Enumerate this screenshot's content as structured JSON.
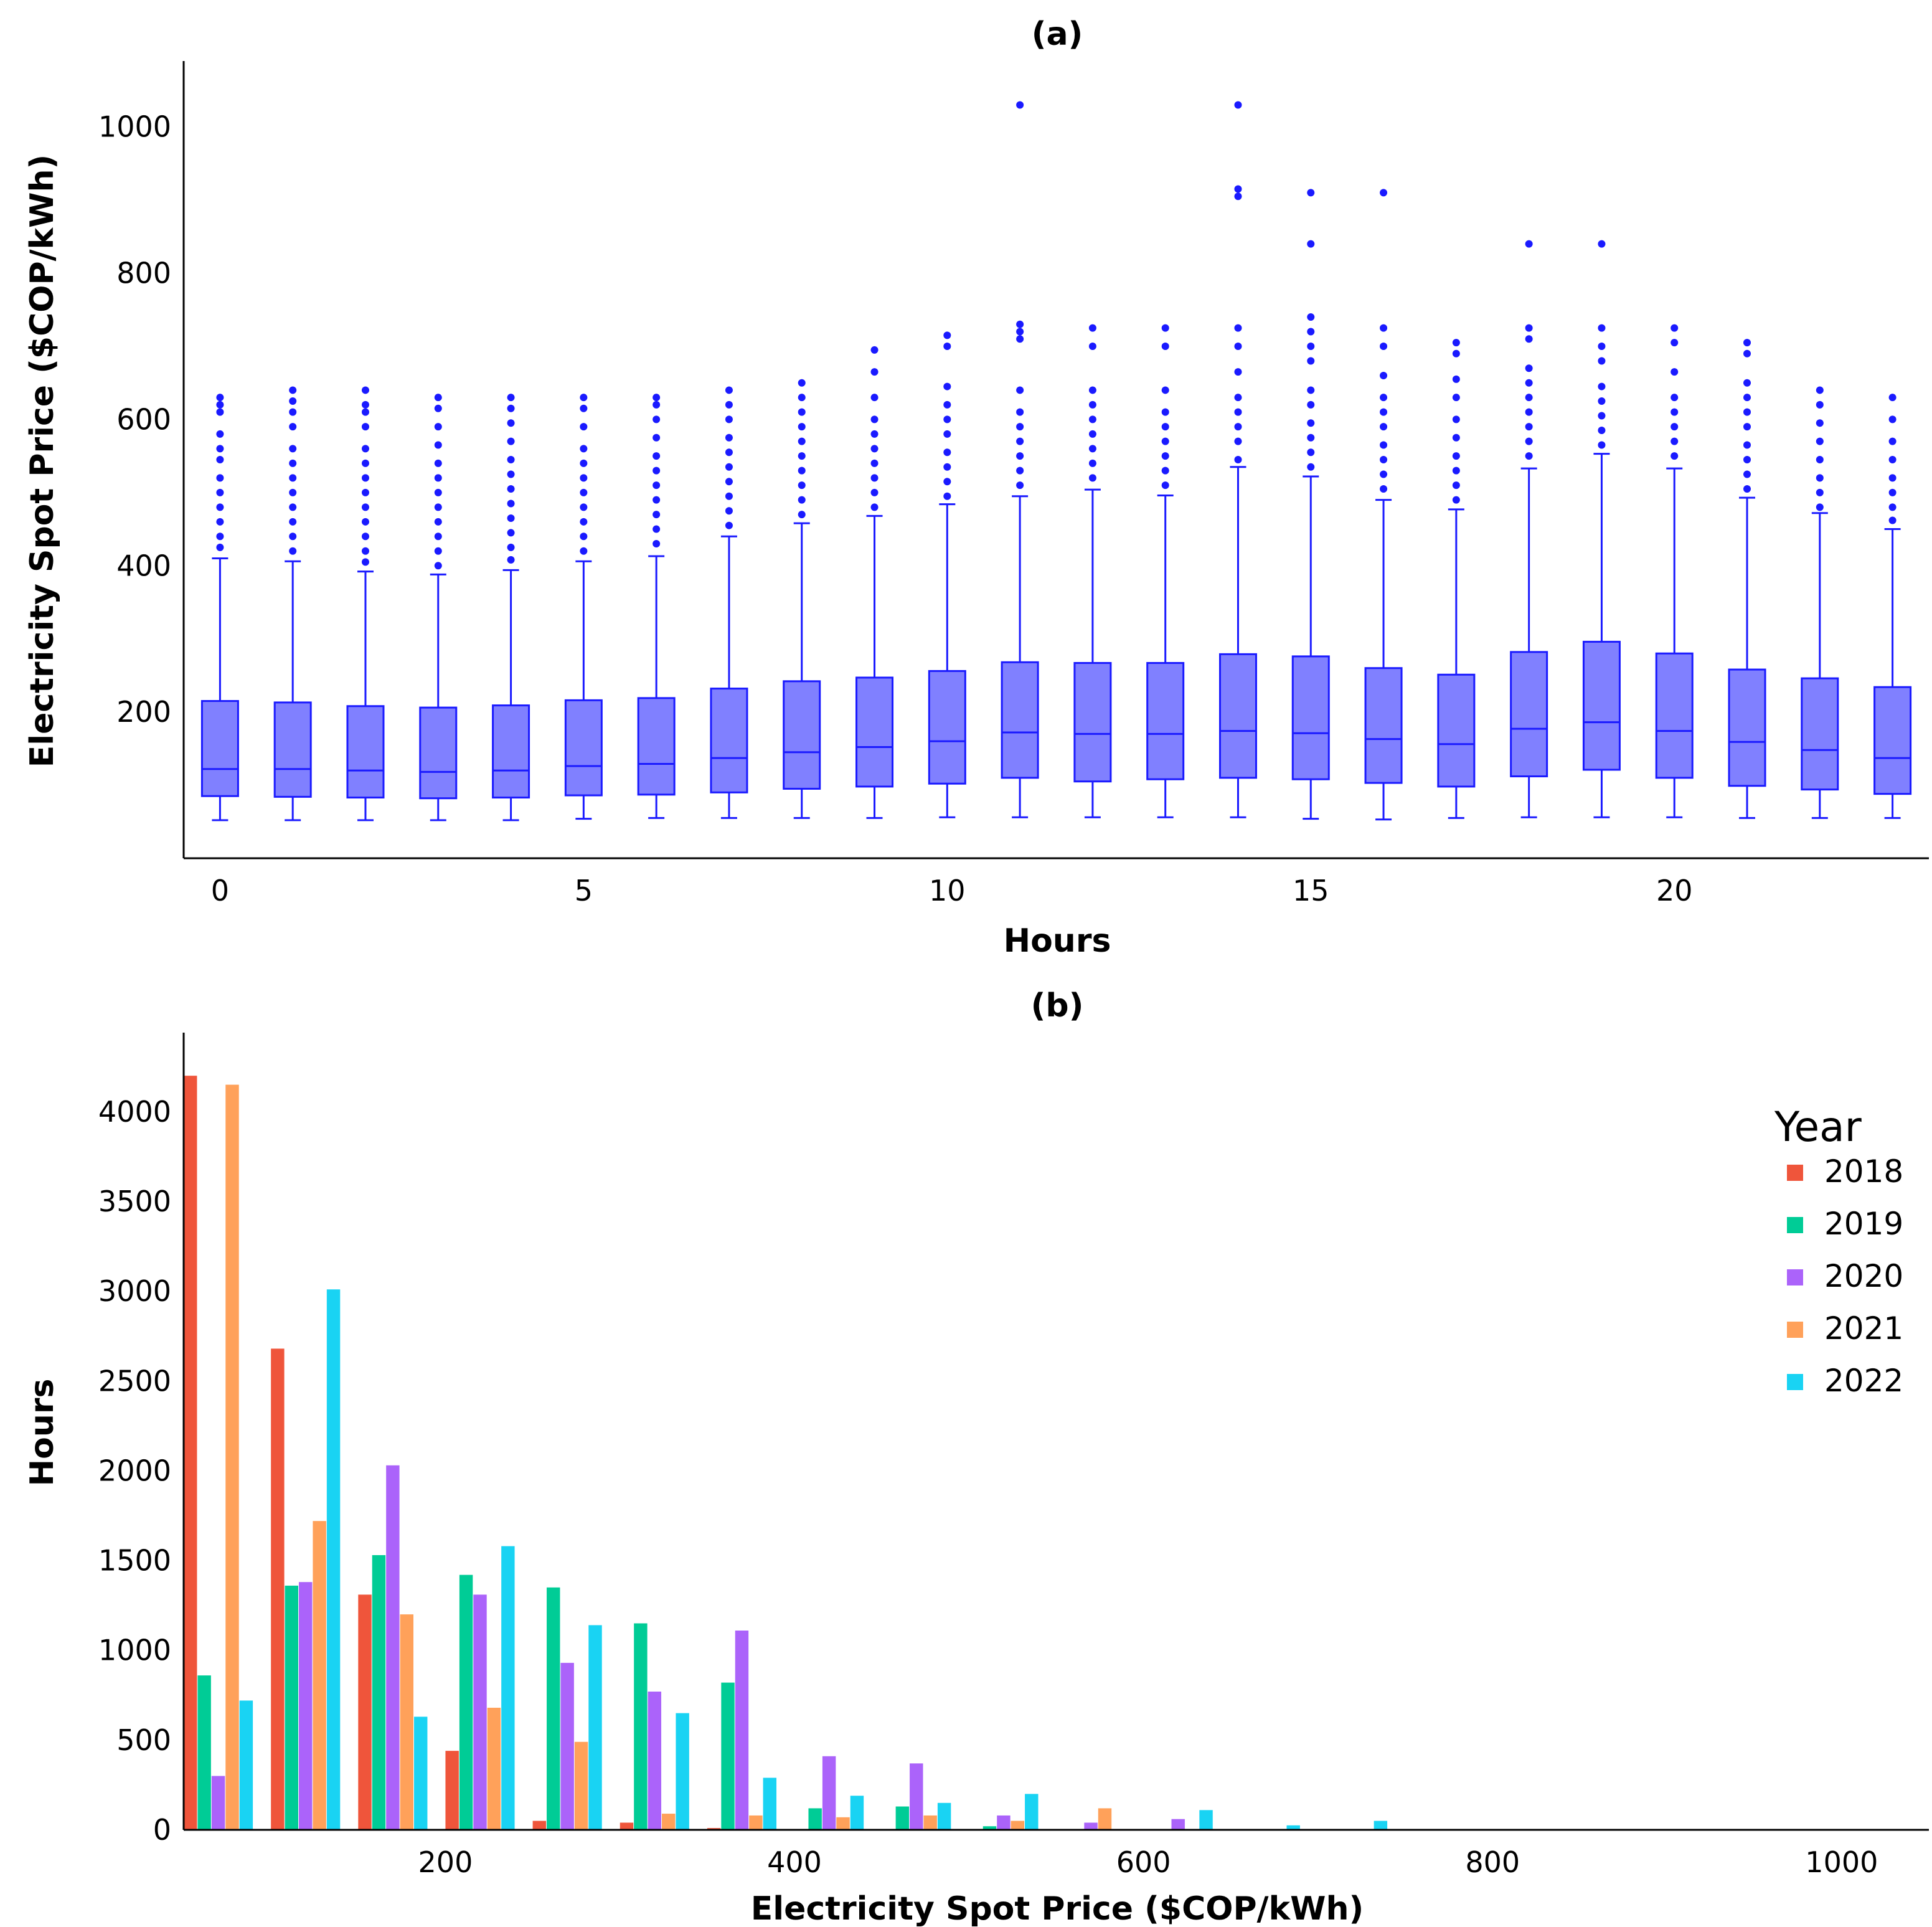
{
  "chart_data": [
    {
      "type": "box",
      "panel_label": "(a)",
      "xlabel": "Hours",
      "ylabel": "Electricity Spot Price ($COP/kWh)",
      "xticks": [
        0,
        5,
        10,
        15,
        20
      ],
      "yticks": [
        200,
        400,
        600,
        800,
        1000
      ],
      "xlim": [
        -0.5,
        23.5
      ],
      "ylim": [
        0,
        1090
      ],
      "color": "#1a1aff",
      "fill": "#8080ff",
      "boxes": [
        {
          "hour": 0,
          "whislo": 52,
          "q1": 85,
          "med": 122,
          "q3": 215,
          "whishi": 410,
          "outliers": [
            425,
            440,
            460,
            480,
            500,
            520,
            545,
            560,
            580,
            610,
            620,
            630
          ]
        },
        {
          "hour": 1,
          "whislo": 52,
          "q1": 84,
          "med": 122,
          "q3": 213,
          "whishi": 406,
          "outliers": [
            420,
            440,
            460,
            480,
            500,
            520,
            540,
            560,
            590,
            610,
            625,
            640
          ]
        },
        {
          "hour": 2,
          "whislo": 52,
          "q1": 83,
          "med": 120,
          "q3": 208,
          "whishi": 392,
          "outliers": [
            405,
            420,
            440,
            460,
            480,
            500,
            520,
            540,
            560,
            590,
            610,
            620,
            640
          ]
        },
        {
          "hour": 3,
          "whislo": 52,
          "q1": 82,
          "med": 118,
          "q3": 206,
          "whishi": 388,
          "outliers": [
            400,
            420,
            440,
            460,
            480,
            500,
            520,
            540,
            565,
            590,
            615,
            630
          ]
        },
        {
          "hour": 4,
          "whislo": 52,
          "q1": 83,
          "med": 120,
          "q3": 209,
          "whishi": 394,
          "outliers": [
            408,
            425,
            445,
            465,
            485,
            505,
            525,
            545,
            570,
            595,
            615,
            630
          ]
        },
        {
          "hour": 5,
          "whislo": 54,
          "q1": 86,
          "med": 126,
          "q3": 216,
          "whishi": 406,
          "outliers": [
            420,
            440,
            460,
            480,
            500,
            520,
            540,
            560,
            590,
            615,
            630
          ]
        },
        {
          "hour": 6,
          "whislo": 55,
          "q1": 87,
          "med": 129,
          "q3": 219,
          "whishi": 413,
          "outliers": [
            430,
            450,
            470,
            490,
            510,
            530,
            550,
            575,
            600,
            620,
            630
          ]
        },
        {
          "hour": 7,
          "whislo": 55,
          "q1": 90,
          "med": 137,
          "q3": 232,
          "whishi": 440,
          "outliers": [
            455,
            475,
            495,
            515,
            535,
            555,
            575,
            600,
            620,
            640
          ]
        },
        {
          "hour": 8,
          "whislo": 55,
          "q1": 95,
          "med": 145,
          "q3": 242,
          "whishi": 458,
          "outliers": [
            470,
            490,
            510,
            530,
            550,
            570,
            590,
            610,
            630,
            650
          ]
        },
        {
          "hour": 9,
          "whislo": 55,
          "q1": 98,
          "med": 152,
          "q3": 247,
          "whishi": 468,
          "outliers": [
            480,
            500,
            520,
            540,
            560,
            580,
            600,
            630,
            665,
            695
          ]
        },
        {
          "hour": 10,
          "whislo": 56,
          "q1": 102,
          "med": 160,
          "q3": 256,
          "whishi": 484,
          "outliers": [
            495,
            515,
            535,
            555,
            580,
            600,
            620,
            645,
            700,
            715
          ]
        },
        {
          "hour": 11,
          "whislo": 56,
          "q1": 110,
          "med": 172,
          "q3": 268,
          "whishi": 495,
          "outliers": [
            510,
            530,
            550,
            570,
            590,
            610,
            640,
            710,
            720,
            730,
            1030
          ]
        },
        {
          "hour": 12,
          "whislo": 56,
          "q1": 105,
          "med": 170,
          "q3": 267,
          "whishi": 504,
          "outliers": [
            520,
            540,
            560,
            580,
            600,
            620,
            640,
            700,
            725
          ]
        },
        {
          "hour": 13,
          "whislo": 56,
          "q1": 108,
          "med": 170,
          "q3": 267,
          "whishi": 496,
          "outliers": [
            510,
            530,
            550,
            570,
            590,
            610,
            640,
            700,
            725
          ]
        },
        {
          "hour": 14,
          "whislo": 56,
          "q1": 110,
          "med": 174,
          "q3": 279,
          "whishi": 535,
          "outliers": [
            545,
            570,
            590,
            610,
            630,
            665,
            700,
            725,
            905,
            915,
            1030
          ]
        },
        {
          "hour": 15,
          "whislo": 54,
          "q1": 108,
          "med": 171,
          "q3": 276,
          "whishi": 522,
          "outliers": [
            535,
            555,
            575,
            595,
            620,
            640,
            680,
            700,
            720,
            740,
            840,
            910
          ]
        },
        {
          "hour": 16,
          "whislo": 53,
          "q1": 103,
          "med": 163,
          "q3": 260,
          "whishi": 490,
          "outliers": [
            505,
            525,
            545,
            565,
            590,
            610,
            630,
            660,
            700,
            725,
            910
          ]
        },
        {
          "hour": 17,
          "whislo": 55,
          "q1": 98,
          "med": 156,
          "q3": 251,
          "whishi": 477,
          "outliers": [
            490,
            510,
            530,
            550,
            575,
            600,
            630,
            655,
            690,
            705
          ]
        },
        {
          "hour": 18,
          "whislo": 56,
          "q1": 112,
          "med": 177,
          "q3": 282,
          "whishi": 533,
          "outliers": [
            550,
            570,
            590,
            610,
            630,
            650,
            670,
            710,
            725,
            840
          ]
        },
        {
          "hour": 19,
          "whislo": 56,
          "q1": 121,
          "med": 186,
          "q3": 296,
          "whishi": 553,
          "outliers": [
            565,
            585,
            605,
            625,
            645,
            680,
            700,
            725,
            840
          ]
        },
        {
          "hour": 20,
          "whislo": 56,
          "q1": 110,
          "med": 174,
          "q3": 280,
          "whishi": 533,
          "outliers": [
            550,
            570,
            590,
            610,
            630,
            665,
            705,
            725
          ]
        },
        {
          "hour": 21,
          "whislo": 55,
          "q1": 99,
          "med": 159,
          "q3": 258,
          "whishi": 493,
          "outliers": [
            505,
            525,
            545,
            565,
            590,
            610,
            630,
            650,
            690,
            705
          ]
        },
        {
          "hour": 22,
          "whislo": 55,
          "q1": 94,
          "med": 148,
          "q3": 246,
          "whishi": 472,
          "outliers": [
            480,
            500,
            520,
            545,
            570,
            595,
            620,
            640
          ]
        },
        {
          "hour": 23,
          "whislo": 55,
          "q1": 88,
          "med": 137,
          "q3": 234,
          "whishi": 450,
          "outliers": [
            462,
            480,
            500,
            520,
            545,
            570,
            600,
            630
          ]
        }
      ]
    },
    {
      "type": "bar",
      "panel_label": "(b)",
      "xlabel": "Electricity Spot Price ($COP/kWh)",
      "ylabel": "Hours",
      "xticks": [
        200,
        400,
        600,
        800,
        1000
      ],
      "yticks": [
        0,
        500,
        1000,
        1500,
        2000,
        2500,
        3000,
        3500,
        4000
      ],
      "xlim": [
        50,
        1050
      ],
      "ylim": [
        0,
        4440
      ],
      "bin_start": 50,
      "bin_width": 50,
      "legend_title": "Year",
      "legend_position": "top-right",
      "series": [
        {
          "name": "2018",
          "color": "#ef553b",
          "values": [
            4200,
            2680,
            1310,
            440,
            50,
            40,
            10,
            0,
            0,
            0,
            0,
            0,
            0,
            0,
            0,
            0,
            0,
            0,
            0,
            0
          ]
        },
        {
          "name": "2019",
          "color": "#00cc96",
          "values": [
            860,
            1360,
            1530,
            1420,
            1350,
            1150,
            820,
            120,
            130,
            20,
            0,
            0,
            0,
            0,
            0,
            0,
            0,
            0,
            0,
            0
          ]
        },
        {
          "name": "2020",
          "color": "#ab63fa",
          "values": [
            300,
            1380,
            2030,
            1310,
            930,
            770,
            1110,
            410,
            370,
            80,
            40,
            60,
            0,
            0,
            0,
            0,
            0,
            0,
            0,
            0
          ]
        },
        {
          "name": "2021",
          "color": "#ffa15a",
          "values": [
            4150,
            1720,
            1200,
            680,
            490,
            90,
            80,
            70,
            80,
            50,
            120,
            0,
            0,
            0,
            0,
            0,
            0,
            0,
            0,
            0
          ]
        },
        {
          "name": "2022",
          "color": "#19d3f3",
          "values": [
            720,
            3010,
            630,
            1580,
            1140,
            650,
            290,
            190,
            150,
            200,
            0,
            110,
            25,
            50,
            0,
            5,
            0,
            0,
            3,
            0
          ]
        }
      ]
    }
  ]
}
